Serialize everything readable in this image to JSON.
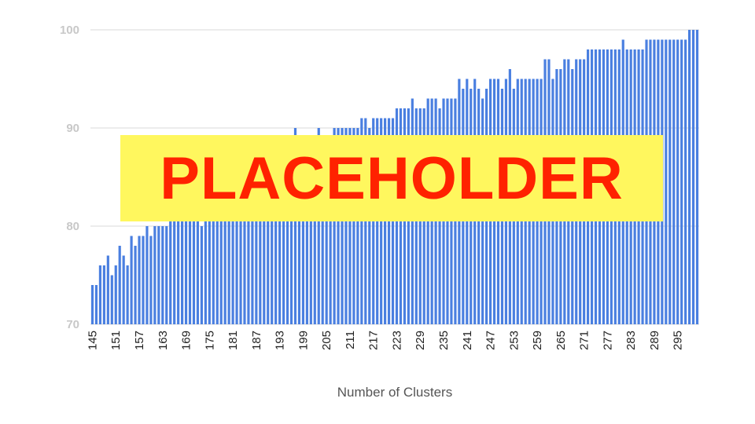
{
  "chart_data": {
    "type": "bar",
    "title": "",
    "xlabel": "Number of Clusters",
    "ylabel": "",
    "ylim": [
      70,
      100
    ],
    "y_ticks": [
      70,
      80,
      90,
      100
    ],
    "grid": true,
    "x": [
      145,
      146,
      147,
      148,
      149,
      150,
      151,
      152,
      153,
      154,
      155,
      156,
      157,
      158,
      159,
      160,
      161,
      162,
      163,
      164,
      165,
      166,
      167,
      168,
      169,
      170,
      171,
      172,
      173,
      174,
      175,
      176,
      177,
      178,
      179,
      180,
      181,
      182,
      183,
      184,
      185,
      186,
      187,
      188,
      189,
      190,
      191,
      192,
      193,
      194,
      195,
      196,
      197,
      198,
      199,
      200,
      201,
      202,
      203,
      204,
      205,
      206,
      207,
      208,
      209,
      210,
      211,
      212,
      213,
      214,
      215,
      216,
      217,
      218,
      219,
      220,
      221,
      222,
      223,
      224,
      225,
      226,
      227,
      228,
      229,
      230,
      231,
      232,
      233,
      234,
      235,
      236,
      237,
      238,
      239,
      240,
      241,
      242,
      243,
      244,
      245,
      246,
      247,
      248,
      249,
      250,
      251,
      252,
      253,
      254,
      255,
      256,
      257,
      258,
      259,
      260,
      261,
      262,
      263,
      264,
      265,
      266,
      267,
      268,
      269,
      270,
      271,
      272,
      273,
      274,
      275,
      276,
      277,
      278,
      279,
      280,
      281,
      282,
      283,
      284,
      285,
      286,
      287,
      288,
      289,
      290,
      291,
      292,
      293,
      294,
      295,
      296,
      297,
      298,
      299,
      300
    ],
    "x_tick_labels": [
      "145",
      "151",
      "157",
      "163",
      "169",
      "175",
      "181",
      "187",
      "193",
      "199",
      "205",
      "211",
      "217",
      "223",
      "229",
      "235",
      "241",
      "247",
      "253",
      "259",
      "265",
      "271",
      "277",
      "283",
      "289",
      "295"
    ],
    "values": [
      74,
      74,
      76,
      76,
      77,
      75,
      76,
      78,
      77,
      76,
      79,
      78,
      79,
      79,
      80,
      79,
      80,
      80,
      80,
      80,
      81,
      81,
      81,
      81,
      81,
      81,
      81,
      81,
      80,
      81,
      81,
      81,
      82,
      82,
      82,
      83,
      83,
      83,
      84,
      84,
      84,
      85,
      85,
      85,
      86,
      86,
      87,
      87,
      88,
      88,
      89,
      89,
      90,
      88,
      89,
      89,
      89,
      89,
      90,
      89,
      89,
      89,
      90,
      90,
      90,
      90,
      90,
      90,
      90,
      91,
      91,
      90,
      91,
      91,
      91,
      91,
      91,
      91,
      92,
      92,
      92,
      92,
      93,
      92,
      92,
      92,
      93,
      93,
      93,
      92,
      93,
      93,
      93,
      93,
      95,
      94,
      95,
      94,
      95,
      94,
      93,
      94,
      95,
      95,
      95,
      94,
      95,
      96,
      94,
      95,
      95,
      95,
      95,
      95,
      95,
      95,
      97,
      97,
      95,
      96,
      96,
      97,
      97,
      96,
      97,
      97,
      97,
      98,
      98,
      98,
      98,
      98,
      98,
      98,
      98,
      98,
      99,
      98,
      98,
      98,
      98,
      98,
      99,
      99,
      99,
      99,
      99,
      99,
      99,
      99,
      99,
      99,
      99,
      100,
      100,
      100
    ],
    "bar_color": "#4a7fe0",
    "grid_color": "#d9d9d9"
  },
  "overlay": {
    "text": "PLACEHOLDER",
    "background": "#fff75e",
    "color": "#ff2200"
  }
}
